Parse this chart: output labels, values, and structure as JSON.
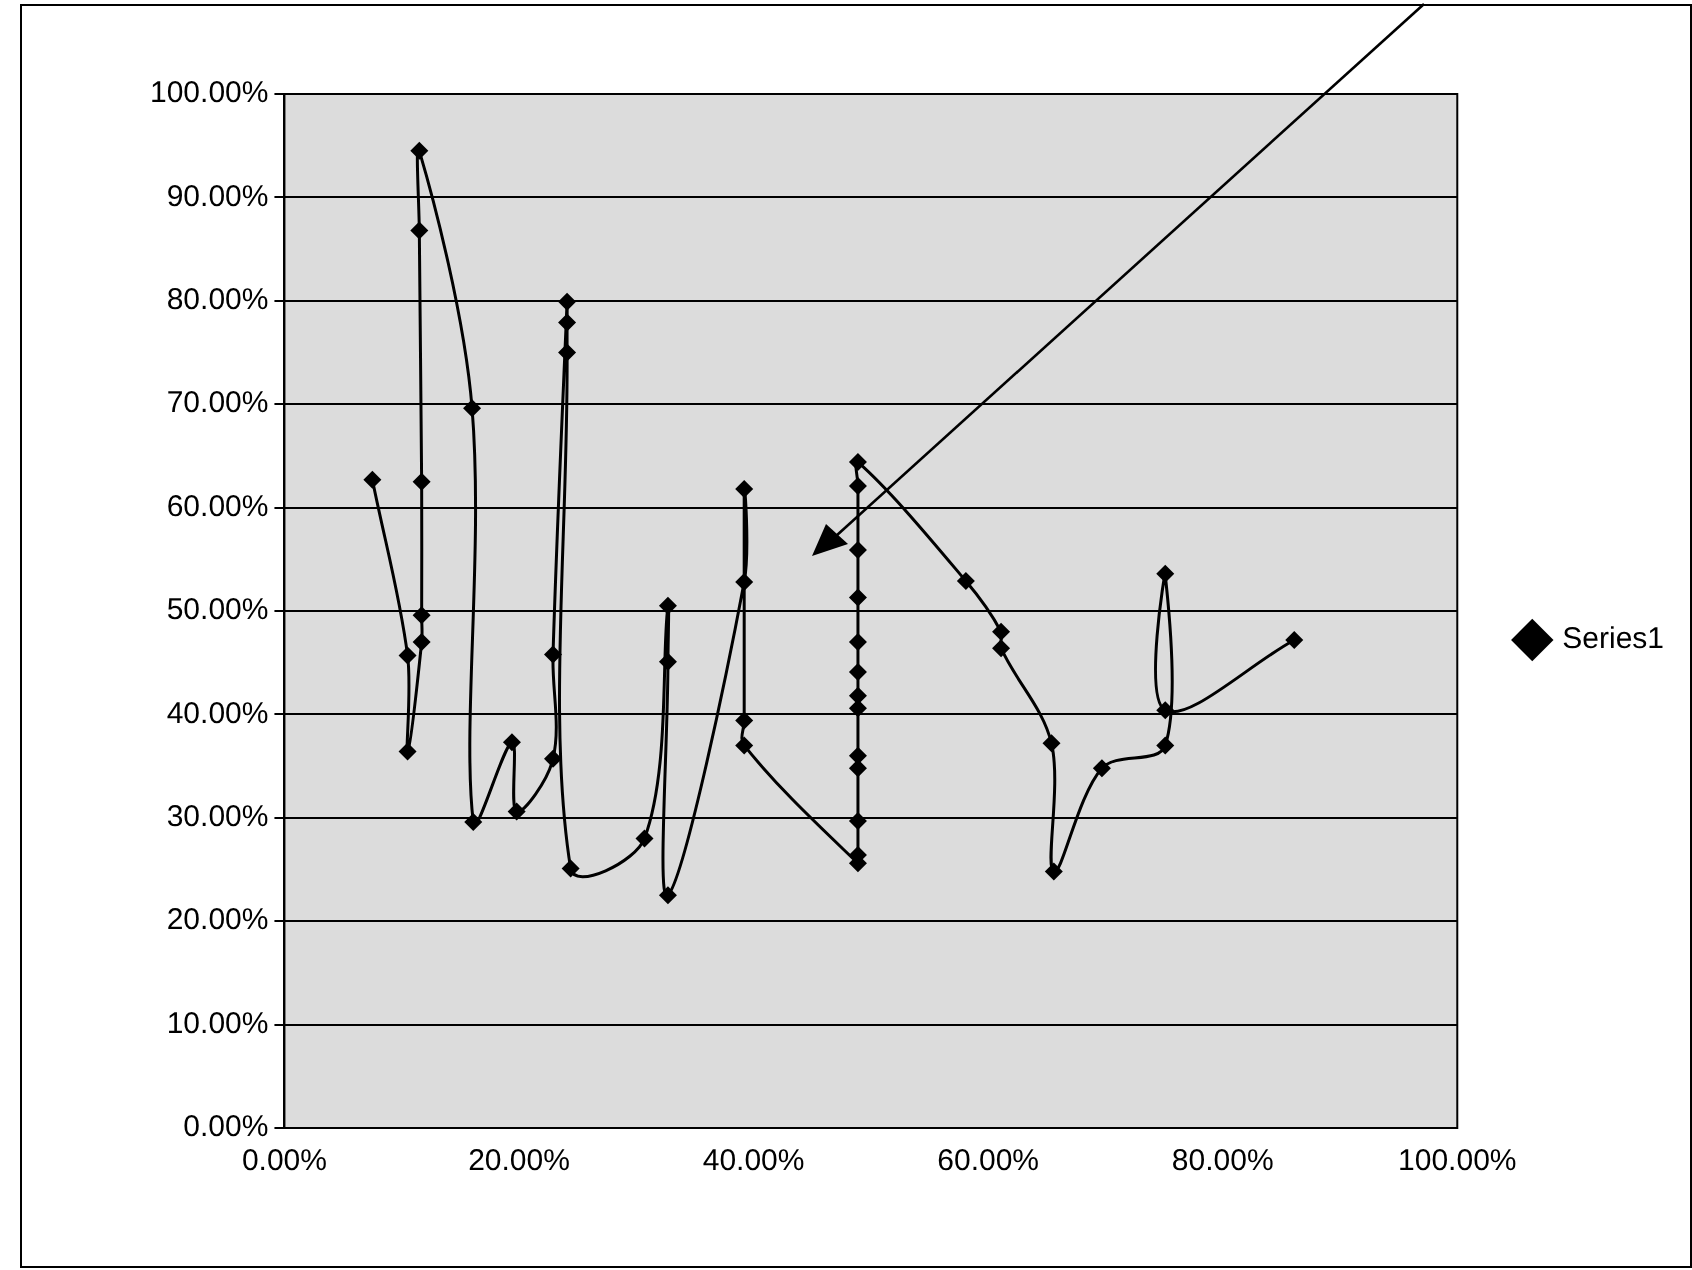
{
  "chart_data": {
    "type": "line",
    "xlim": [
      0,
      100
    ],
    "ylim": [
      0,
      100
    ],
    "xticks": [
      {
        "value": 0,
        "label": "0.00%"
      },
      {
        "value": 20,
        "label": "20.00%"
      },
      {
        "value": 40,
        "label": "40.00%"
      },
      {
        "value": 60,
        "label": "60.00%"
      },
      {
        "value": 80,
        "label": "80.00%"
      },
      {
        "value": 100,
        "label": "100.00%"
      }
    ],
    "yticks": [
      {
        "value": 0,
        "label": "0.00%"
      },
      {
        "value": 10,
        "label": "10.00%"
      },
      {
        "value": 20,
        "label": "20.00%"
      },
      {
        "value": 30,
        "label": "30.00%"
      },
      {
        "value": 40,
        "label": "40.00%"
      },
      {
        "value": 50,
        "label": "50.00%"
      },
      {
        "value": 60,
        "label": "60.00%"
      },
      {
        "value": 70,
        "label": "70.00%"
      },
      {
        "value": 80,
        "label": "80.00%"
      },
      {
        "value": 90,
        "label": "90.00%"
      },
      {
        "value": 100,
        "label": "100.00%"
      }
    ],
    "grid": "y",
    "legend": "right",
    "marker": "diamond",
    "line_style": "solid",
    "series": [
      {
        "name": "Series1",
        "color": "#000000",
        "x": [
          7.5,
          10.5,
          10.5,
          11.7,
          11.7,
          11.7,
          11.5,
          11.5,
          16.0,
          16.1,
          19.4,
          19.8,
          22.9,
          22.9,
          24.1,
          24.1,
          24.1,
          24.4,
          30.7,
          32.7,
          32.7,
          32.7,
          39.2,
          39.2,
          39.2,
          39.2,
          48.9,
          48.9,
          48.9,
          48.9,
          48.9,
          48.9,
          48.9,
          48.9,
          48.9,
          48.9,
          48.9,
          48.9,
          48.9,
          58.1,
          61.1,
          61.1,
          65.4,
          65.6,
          69.7,
          75.1,
          75.1,
          75.1,
          86.1
        ],
        "values": [
          62.7,
          45.7,
          36.4,
          47.0,
          49.6,
          62.5,
          86.8,
          94.5,
          69.6,
          29.6,
          37.3,
          30.6,
          35.7,
          45.8,
          79.9,
          77.9,
          75.0,
          25.1,
          28.0,
          50.5,
          45.1,
          22.5,
          52.8,
          61.8,
          39.4,
          37.0,
          25.6,
          26.4,
          29.7,
          34.8,
          36.0,
          40.6,
          41.8,
          44.1,
          47.0,
          51.3,
          55.9,
          62.1,
          64.4,
          52.9,
          48.0,
          46.4,
          37.2,
          24.8,
          34.8,
          37.0,
          53.6,
          40.4,
          47.2
        ]
      }
    ]
  }
}
